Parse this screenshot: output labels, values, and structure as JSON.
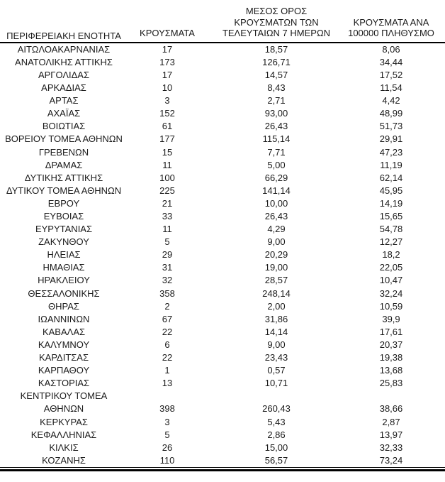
{
  "table": {
    "headers": {
      "region": "ΠΕΡΙΦΕΡΕΙΑΚΗ ΕΝΟΤΗΤΑ",
      "cases": "ΚΡΟΥΣΜΑΤΑ",
      "avg7_lines": [
        "ΜΕΣΟΣ ΟΡΟΣ",
        "ΚΡΟΥΣΜΑΤΩΝ ΤΩΝ",
        "ΤΕΛΕΥΤΑΙΩΝ 7 ΗΜΕΡΩΝ"
      ],
      "per100k_lines": [
        "ΚΡΟΥΣΜΑΤΑ ΑΝΑ",
        "100000 ΠΛΗΘΥΣΜΟ"
      ]
    },
    "rows": [
      {
        "region": "ΑΙΤΩΛΟΑΚΑΡΝΑΝΙΑΣ",
        "cases": "17",
        "avg7": "18,57",
        "per100k": "8,06"
      },
      {
        "region": "ΑΝΑΤΟΛΙΚΗΣ ΑΤΤΙΚΗΣ",
        "cases": "173",
        "avg7": "126,71",
        "per100k": "34,44"
      },
      {
        "region": "ΑΡΓΟΛΙΔΑΣ",
        "cases": "17",
        "avg7": "14,57",
        "per100k": "17,52"
      },
      {
        "region": "ΑΡΚΑΔΙΑΣ",
        "cases": "10",
        "avg7": "8,43",
        "per100k": "11,54"
      },
      {
        "region": "ΑΡΤΑΣ",
        "cases": "3",
        "avg7": "2,71",
        "per100k": "4,42"
      },
      {
        "region": "ΑΧΑΪΑΣ",
        "cases": "152",
        "avg7": "93,00",
        "per100k": "48,99"
      },
      {
        "region": "ΒΟΙΩΤΙΑΣ",
        "cases": "61",
        "avg7": "26,43",
        "per100k": "51,73"
      },
      {
        "region": "ΒΟΡΕΙΟΥ ΤΟΜΕΑ ΑΘΗΝΩΝ",
        "cases": "177",
        "avg7": "115,14",
        "per100k": "29,91"
      },
      {
        "region": "ΓΡΕΒΕΝΩΝ",
        "cases": "15",
        "avg7": "7,71",
        "per100k": "47,23"
      },
      {
        "region": "ΔΡΑΜΑΣ",
        "cases": "11",
        "avg7": "5,00",
        "per100k": "11,19"
      },
      {
        "region": "ΔΥΤΙΚΗΣ ΑΤΤΙΚΗΣ",
        "cases": "100",
        "avg7": "66,29",
        "per100k": "62,14"
      },
      {
        "region": "ΔΥΤΙΚΟΥ ΤΟΜΕΑ ΑΘΗΝΩΝ",
        "cases": "225",
        "avg7": "141,14",
        "per100k": "45,95"
      },
      {
        "region": "ΕΒΡΟΥ",
        "cases": "21",
        "avg7": "10,00",
        "per100k": "14,19"
      },
      {
        "region": "ΕΥΒΟΙΑΣ",
        "cases": "33",
        "avg7": "26,43",
        "per100k": "15,65"
      },
      {
        "region": "ΕΥΡΥΤΑΝΙΑΣ",
        "cases": "11",
        "avg7": "4,29",
        "per100k": "54,78"
      },
      {
        "region": "ΖΑΚΥΝΘΟΥ",
        "cases": "5",
        "avg7": "9,00",
        "per100k": "12,27"
      },
      {
        "region": "ΗΛΕΙΑΣ",
        "cases": "29",
        "avg7": "20,29",
        "per100k": "18,2"
      },
      {
        "region": "ΗΜΑΘΙΑΣ",
        "cases": "31",
        "avg7": "19,00",
        "per100k": "22,05"
      },
      {
        "region": "ΗΡΑΚΛΕΙΟΥ",
        "cases": "32",
        "avg7": "28,57",
        "per100k": "10,47"
      },
      {
        "region": "ΘΕΣΣΑΛΟΝΙΚΗΣ",
        "cases": "358",
        "avg7": "248,14",
        "per100k": "32,24"
      },
      {
        "region": "ΘΗΡΑΣ",
        "cases": "2",
        "avg7": "2,00",
        "per100k": "10,59"
      },
      {
        "region": "ΙΩΑΝΝΙΝΩΝ",
        "cases": "67",
        "avg7": "31,86",
        "per100k": "39,9"
      },
      {
        "region": "ΚΑΒΑΛΑΣ",
        "cases": "22",
        "avg7": "14,14",
        "per100k": "17,61"
      },
      {
        "region": "ΚΑΛΥΜΝΟΥ",
        "cases": "6",
        "avg7": "9,00",
        "per100k": "20,37"
      },
      {
        "region": "ΚΑΡΔΙΤΣΑΣ",
        "cases": "22",
        "avg7": "23,43",
        "per100k": "19,38"
      },
      {
        "region": "ΚΑΡΠΑΘΟΥ",
        "cases": "1",
        "avg7": "0,57",
        "per100k": "13,68"
      },
      {
        "region": "ΚΑΣΤΟΡΙΑΣ",
        "cases": "13",
        "avg7": "10,71",
        "per100k": "25,83"
      },
      {
        "region": "ΚΕΝΤΡΙΚΟΥ ΤΟΜΕΑ ΑΘΗΝΩΝ",
        "cases": "398",
        "avg7": "260,43",
        "per100k": "38,66"
      },
      {
        "region": "ΚΕΡΚΥΡΑΣ",
        "cases": "3",
        "avg7": "5,43",
        "per100k": "2,87"
      },
      {
        "region": "ΚΕΦΑΛΛΗΝΙΑΣ",
        "cases": "5",
        "avg7": "2,86",
        "per100k": "13,97"
      },
      {
        "region": "ΚΙΛΚΙΣ",
        "cases": "26",
        "avg7": "15,00",
        "per100k": "32,33"
      },
      {
        "region": "ΚΟΖΑΝΗΣ",
        "cases": "110",
        "avg7": "56,57",
        "per100k": "73,24"
      }
    ]
  },
  "colors": {
    "text": "#1a1a1a",
    "rule": "#000000",
    "background": "#ffffff"
  }
}
